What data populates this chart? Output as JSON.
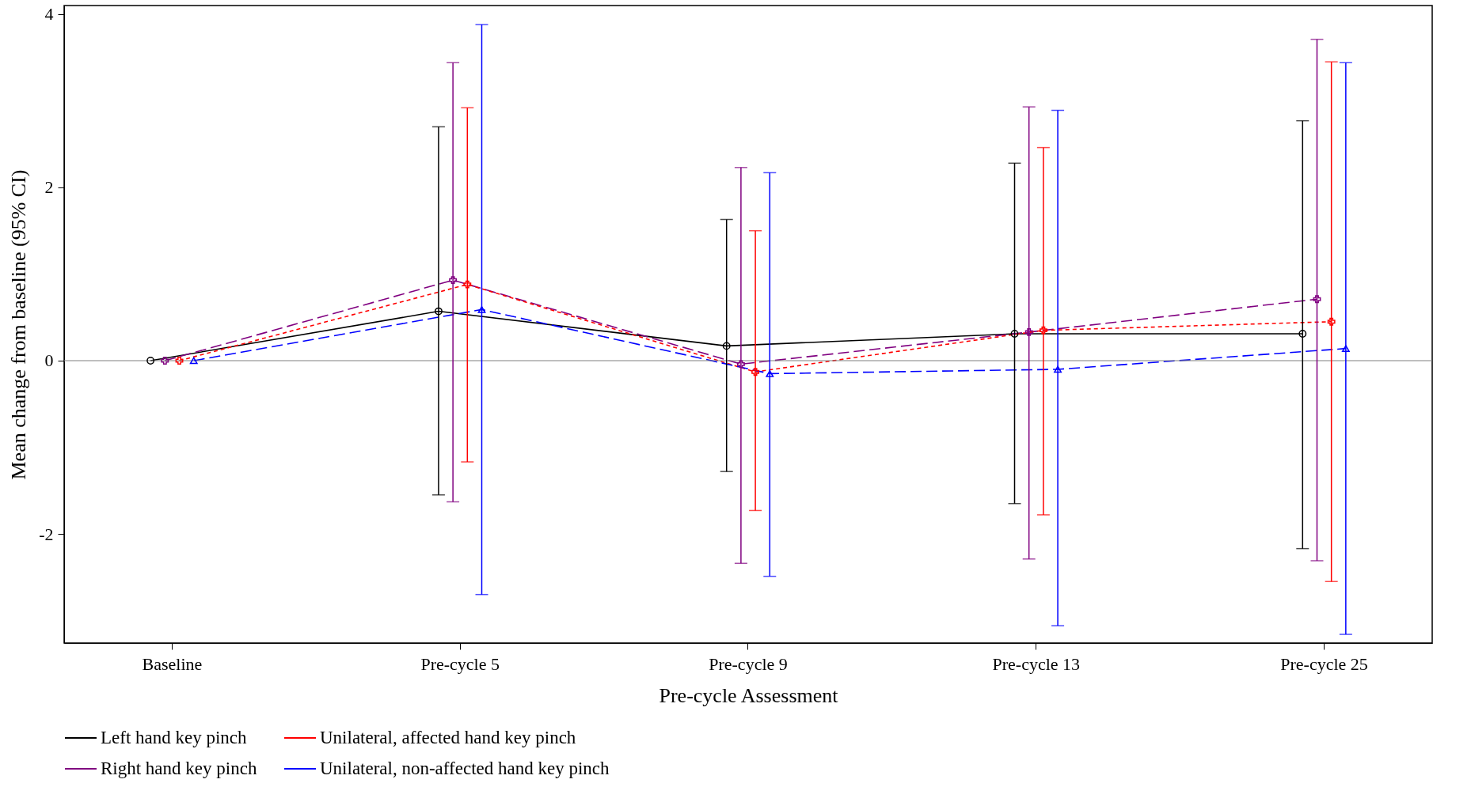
{
  "chart_data": {
    "type": "line",
    "xlabel": "Pre-cycle Assessment",
    "ylabel": "Mean change from baseline (95% CI)",
    "categories": [
      "Baseline",
      "Pre-cycle 5",
      "Pre-cycle 9",
      "Pre-cycle 13",
      "Pre-cycle 25"
    ],
    "ylim": [
      -3.26,
      4.1
    ],
    "yticks": [
      -2,
      0,
      2,
      4
    ],
    "legend": "bottom",
    "ref_lines": [
      {
        "axis": "y",
        "value": 0,
        "color": "#808080"
      }
    ],
    "series": [
      {
        "name": "Left hand key pinch",
        "color": "#000000",
        "marker": "circle",
        "line_style": "solid",
        "values": [
          0,
          0.57,
          0.17,
          0.31,
          0.31
        ],
        "errors": [
          null,
          [
            -1.55,
            2.7
          ],
          [
            -1.28,
            1.63
          ],
          [
            -1.65,
            2.28
          ],
          [
            -2.17,
            2.77
          ]
        ]
      },
      {
        "name": "Right hand key pinch",
        "color": "#800080",
        "marker": "cross",
        "line_style": "dashed",
        "values": [
          0,
          0.93,
          -0.04,
          0.33,
          0.71
        ],
        "errors": [
          null,
          [
            -1.63,
            3.44
          ],
          [
            -2.34,
            2.23
          ],
          [
            -2.29,
            2.93
          ],
          [
            -2.31,
            3.71
          ]
        ]
      },
      {
        "name": "Unilateral, affected hand key pinch",
        "color": "#ff0000",
        "marker": "cross",
        "line_style": "dotted",
        "values": [
          0,
          0.88,
          -0.13,
          0.35,
          0.45
        ],
        "errors": [
          null,
          [
            -1.17,
            2.92
          ],
          [
            -1.73,
            1.5
          ],
          [
            -1.78,
            2.46
          ],
          [
            -2.55,
            3.45
          ]
        ]
      },
      {
        "name": "Unilateral, non-affected hand key pinch",
        "color": "#0000ff",
        "marker": "triangle",
        "line_style": "dashed",
        "values": [
          0,
          0.59,
          -0.15,
          -0.1,
          0.14
        ],
        "errors": [
          null,
          [
            -2.7,
            3.88
          ],
          [
            -2.49,
            2.17
          ],
          [
            -3.06,
            2.89
          ],
          [
            -3.16,
            3.44
          ]
        ]
      }
    ]
  }
}
